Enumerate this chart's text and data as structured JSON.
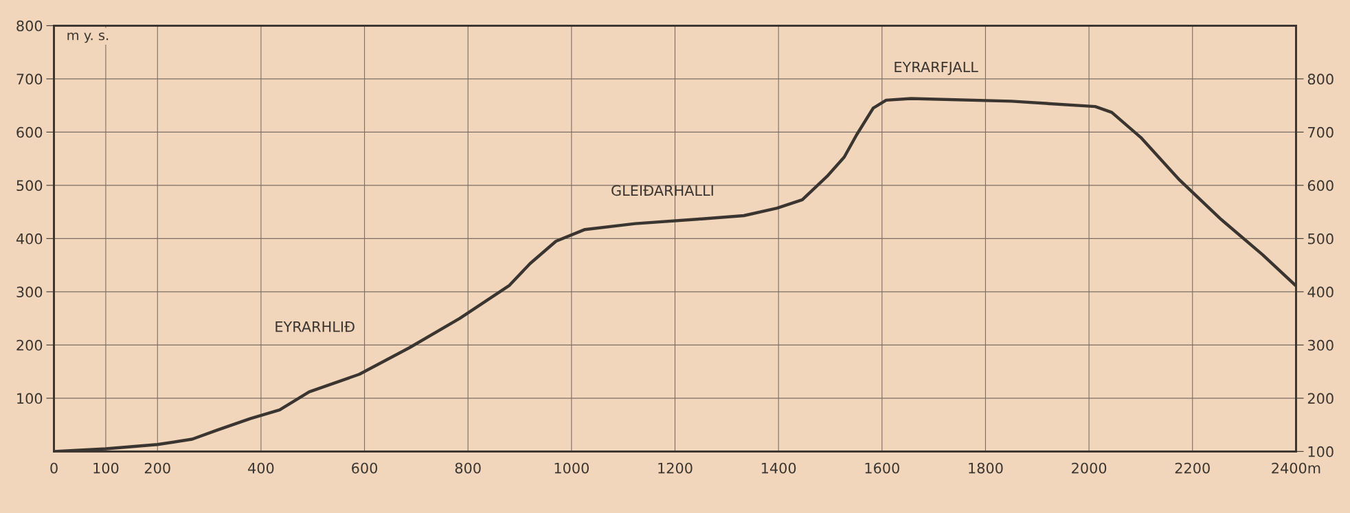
{
  "chart_data": {
    "type": "line",
    "ylabel": "m y. s.",
    "x": [
      0,
      100,
      200,
      267,
      315,
      380,
      436,
      493,
      590,
      687,
      784,
      880,
      920,
      970,
      1026,
      1123,
      1252,
      1333,
      1397,
      1446,
      1494,
      1527,
      1551,
      1583,
      1608,
      1656,
      1850,
      2012,
      2044,
      2100,
      2173,
      2254,
      2335,
      2399
    ],
    "series": [
      {
        "color": "#3a3530",
        "values": [
          0,
          5,
          13,
          23,
          40,
          62,
          78,
          112,
          145,
          195,
          250,
          312,
          353,
          395,
          417,
          428,
          437,
          443,
          457,
          473,
          517,
          553,
          595,
          645,
          660,
          663,
          658,
          648,
          637,
          590,
          512,
          437,
          370,
          312
        ]
      }
    ],
    "xlim": [
      0,
      2400
    ],
    "ylim": [
      0,
      800
    ],
    "y2lim": [
      100,
      900
    ],
    "xticks": [
      0,
      100,
      200,
      400,
      600,
      800,
      1000,
      1200,
      1400,
      1600,
      1800,
      2000,
      2200,
      {
        "value": 2400,
        "label": "2400m"
      }
    ],
    "yticks": [
      100,
      200,
      300,
      400,
      500,
      600,
      700,
      800
    ],
    "y2ticks": [
      100,
      200,
      300,
      400,
      500,
      600,
      700,
      800
    ],
    "grid": true,
    "marker": "none",
    "line_style": "solid",
    "annotations": [
      "EYRARHLIÐ",
      "GLEIÐARHALLI",
      "EYRARFJALL"
    ]
  }
}
